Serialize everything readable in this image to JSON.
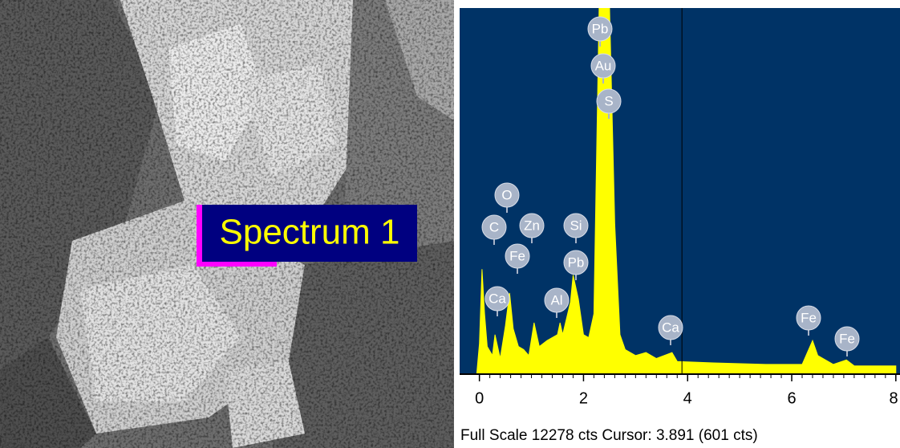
{
  "image_label": "Spectrum 1",
  "chart_data": {
    "type": "area",
    "color": "#ffff00",
    "background": "#003366",
    "x": [
      -0.05,
      0.0,
      0.05,
      0.1,
      0.15,
      0.25,
      0.3,
      0.4,
      0.5,
      0.58,
      0.65,
      0.75,
      0.85,
      0.95,
      1.05,
      1.15,
      1.3,
      1.5,
      1.55,
      1.6,
      1.75,
      1.8,
      1.9,
      2.0,
      2.1,
      2.2,
      2.3,
      2.5,
      2.6,
      2.7,
      2.8,
      3.0,
      3.2,
      3.4,
      3.7,
      3.8,
      4.5,
      5.5,
      6.2,
      6.4,
      6.5,
      6.8,
      7.05,
      7.2,
      8.0
    ],
    "values": [
      0,
      1000,
      3500,
      2000,
      900,
      600,
      1300,
      500,
      1600,
      2700,
      1500,
      900,
      800,
      600,
      1700,
      900,
      1100,
      1300,
      1700,
      1300,
      2400,
      3300,
      2500,
      1300,
      1200,
      2000,
      12278,
      12278,
      5000,
      1300,
      800,
      600,
      700,
      500,
      700,
      400,
      350,
      300,
      300,
      1100,
      600,
      300,
      450,
      250,
      250
    ],
    "xlim": [
      -0.38,
      8.08
    ],
    "ylim": [
      0,
      12278
    ],
    "xticks": [
      0,
      2,
      4,
      6,
      8
    ],
    "cursor": 3.891,
    "peak_labels": [
      "Pb",
      "Au",
      "S",
      "O",
      "C",
      "Zn",
      "Si",
      "Fe",
      "Pb",
      "Ca",
      "Al",
      "Ca",
      "Fe",
      "Fe"
    ],
    "footer": "Full Scale 12278 cts Cursor: 3.891  (601 cts)"
  }
}
